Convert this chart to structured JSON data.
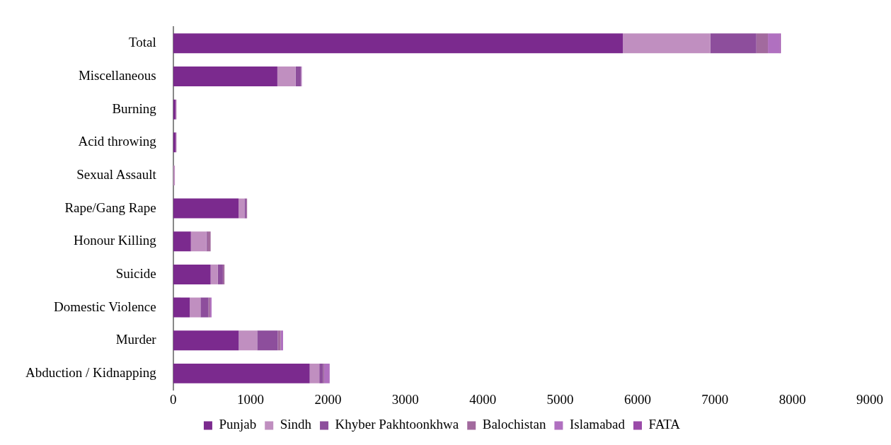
{
  "chart_data": {
    "type": "bar",
    "orientation": "horizontal",
    "stacked": true,
    "categories": [
      "Total",
      "Miscellaneous",
      "Burning",
      "Acid throwing",
      "Sexual Assault",
      "Rape/Gang Rape",
      "Honour Killing",
      "Suicide",
      "Domestic Violence",
      "Murder",
      "Abduction / Kidnapping"
    ],
    "series": [
      {
        "name": "Punjab",
        "color": "#7b2a8e",
        "values": [
          5810,
          1346,
          31,
          34,
          null,
          844,
          229,
          484,
          214,
          847,
          1764
        ]
      },
      {
        "name": "Sindh",
        "color": "#c08fc0",
        "values": [
          1130,
          235,
          13,
          10,
          22,
          77,
          202,
          93,
          139,
          238,
          124
        ]
      },
      {
        "name": "Khyber Pakhtoonkhwa",
        "color": "#8d4e9c",
        "values": [
          595,
          69,
          0,
          0,
          0,
          22,
          9,
          65,
          103,
          267,
          50
        ]
      },
      {
        "name": "Balochistan",
        "color": "#a26a9e",
        "values": [
          149,
          3,
          0,
          0,
          0,
          12,
          44,
          21,
          21,
          37,
          13
        ]
      },
      {
        "name": "Islamabad",
        "color": "#b070c0",
        "values": [
          149,
          9,
          0,
          0,
          0,
          0,
          0,
          0,
          19,
          31,
          71
        ]
      },
      {
        "name": "FATA",
        "color": "#9a4aa8",
        "values": [
          18,
          0,
          0,
          0,
          0,
          0,
          0,
          0,
          0,
          0,
          0
        ]
      }
    ],
    "xlim": [
      0,
      9000
    ],
    "xticks": [
      0,
      1000,
      2000,
      3000,
      4000,
      5000,
      6000,
      7000,
      8000,
      9000
    ],
    "grid": false,
    "legend": "bottom"
  }
}
